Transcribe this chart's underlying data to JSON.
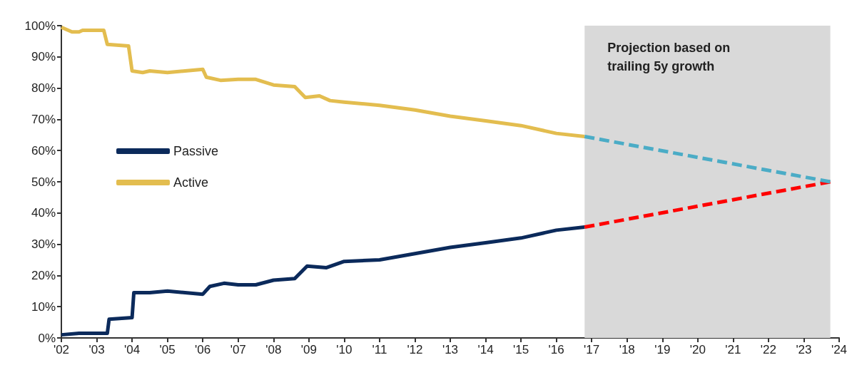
{
  "chart_data": {
    "type": "line",
    "xlim": [
      2002,
      2024
    ],
    "xticks": [
      {
        "value": 2002,
        "label": "'02"
      },
      {
        "value": 2003,
        "label": "'03"
      },
      {
        "value": 2004,
        "label": "'04"
      },
      {
        "value": 2005,
        "label": "'05"
      },
      {
        "value": 2006,
        "label": "'06"
      },
      {
        "value": 2007,
        "label": "'07"
      },
      {
        "value": 2008,
        "label": "'08"
      },
      {
        "value": 2009,
        "label": "'09"
      },
      {
        "value": 2010,
        "label": "'10"
      },
      {
        "value": 2011,
        "label": "'11"
      },
      {
        "value": 2012,
        "label": "'12"
      },
      {
        "value": 2013,
        "label": "'13"
      },
      {
        "value": 2014,
        "label": "'14"
      },
      {
        "value": 2015,
        "label": "'15"
      },
      {
        "value": 2016,
        "label": "'16"
      },
      {
        "value": 2017,
        "label": "'17"
      },
      {
        "value": 2018,
        "label": "'18"
      },
      {
        "value": 2019,
        "label": "'19"
      },
      {
        "value": 2020,
        "label": "'20"
      },
      {
        "value": 2021,
        "label": "'21"
      },
      {
        "value": 2022,
        "label": "'22"
      },
      {
        "value": 2023,
        "label": "'23"
      },
      {
        "value": 2024,
        "label": "'24"
      }
    ],
    "ylim": [
      0,
      100
    ],
    "yticks": [
      {
        "value": 0,
        "label": "0%"
      },
      {
        "value": 10,
        "label": "10%"
      },
      {
        "value": 20,
        "label": "20%"
      },
      {
        "value": 30,
        "label": "30%"
      },
      {
        "value": 40,
        "label": "40%"
      },
      {
        "value": 50,
        "label": "50%"
      },
      {
        "value": 60,
        "label": "60%"
      },
      {
        "value": 70,
        "label": "70%"
      },
      {
        "value": 80,
        "label": "80%"
      },
      {
        "value": 90,
        "label": "90%"
      },
      {
        "value": 100,
        "label": "100%"
      }
    ],
    "grid": false,
    "legend": "left",
    "bands": [
      {
        "axis": "x",
        "from": 2016.8,
        "to": 2023.75,
        "label": "Projection based on\ntrailing 5y growth",
        "color": "#d9d9d9"
      }
    ],
    "series": [
      {
        "name": "Passive",
        "color": "#0b2a5b",
        "line_style": "solid",
        "x": [
          2002,
          2002.5,
          2003.3,
          2003.35,
          2004,
          2004.05,
          2004.5,
          2005,
          2005.5,
          2006,
          2006.2,
          2006.6,
          2007,
          2007.5,
          2008,
          2008.6,
          2008.95,
          2009.5,
          2010,
          2011,
          2012,
          2013,
          2014,
          2015,
          2016,
          2016.8
        ],
        "values": [
          1,
          1.5,
          1.5,
          6,
          6.5,
          14.5,
          14.5,
          15,
          14.5,
          14,
          16.5,
          17.5,
          17,
          17,
          18.5,
          19,
          23,
          22.5,
          24.5,
          25,
          27,
          29,
          30.5,
          32,
          34.5,
          35.5
        ]
      },
      {
        "name": "Active",
        "color": "#e3bd4f",
        "line_style": "solid",
        "x": [
          2002,
          2002.3,
          2002.5,
          2002.6,
          2003.2,
          2003.3,
          2003.9,
          2004,
          2004.3,
          2004.5,
          2005,
          2005.5,
          2006,
          2006.1,
          2006.5,
          2007,
          2007.5,
          2008,
          2008.6,
          2008.9,
          2009.3,
          2009.6,
          2010,
          2011,
          2012,
          2013,
          2014,
          2015,
          2016,
          2016.8
        ],
        "values": [
          99.5,
          98,
          98,
          98.5,
          98.5,
          94,
          93.5,
          85.5,
          85,
          85.5,
          85,
          85.5,
          86,
          83.5,
          82.5,
          82.8,
          82.8,
          81,
          80.5,
          77,
          77.5,
          76,
          75.5,
          74.5,
          73,
          71,
          69.5,
          68,
          65.5,
          64.5
        ]
      },
      {
        "color": "#ff0000",
        "line_style": "dashed",
        "x": [
          2016.8,
          2023.75
        ],
        "values": [
          35.5,
          50
        ]
      },
      {
        "color": "#4bacc6",
        "line_style": "dashed",
        "x": [
          2016.8,
          2023.75
        ],
        "values": [
          64.5,
          50
        ]
      }
    ]
  }
}
